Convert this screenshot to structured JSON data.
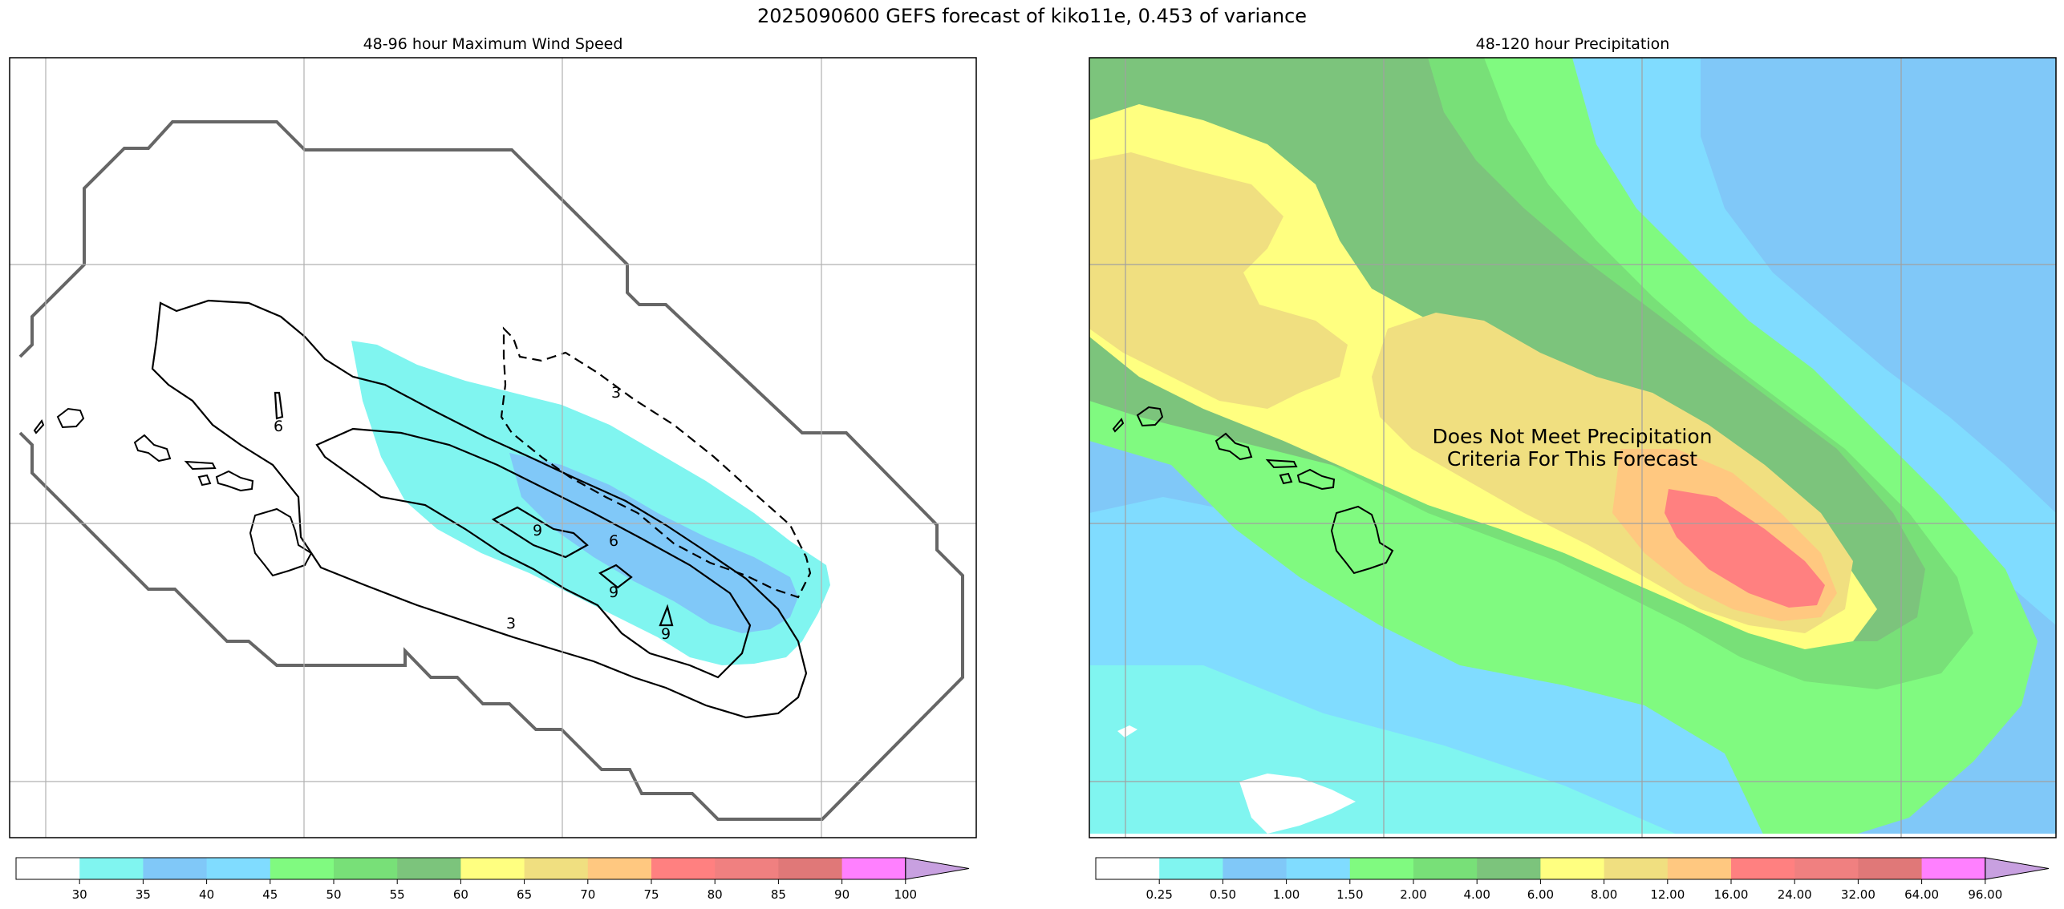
{
  "figure": {
    "title": "2025090600 GEFS forecast of kiko11e, 0.453 of variance"
  },
  "chart_data": [
    {
      "type": "heatmap",
      "title": "48-96 hour Maximum Wind Speed",
      "xlabel": "",
      "ylabel": "",
      "grid": true,
      "colorbar": {
        "levels": [
          30,
          35,
          40,
          45,
          50,
          55,
          60,
          65,
          70,
          75,
          80,
          85,
          90,
          100
        ],
        "tick_labels": [
          "30",
          "35",
          "40",
          "45",
          "50",
          "55",
          "60",
          "65",
          "70",
          "75",
          "80",
          "85",
          "90",
          "100"
        ],
        "colors": [
          "#ffffff",
          "#80f5f0",
          "#80c8f8",
          "#80dcff",
          "#80fa80",
          "#78e078",
          "#7cc47c",
          "#ffff80",
          "#f0df80",
          "#ffc880",
          "#ff8080",
          "#f08080",
          "#e07878",
          "#ff80ff",
          "#c8a0e0"
        ],
        "extend": "max"
      },
      "shaded_region_levels": [
        "35",
        "40"
      ],
      "contour_labels": [
        "3",
        "6",
        "9",
        "9",
        "9",
        "6",
        "3"
      ]
    },
    {
      "type": "heatmap",
      "title": "48-120 hour Precipitation",
      "xlabel": "",
      "ylabel": "",
      "grid": true,
      "annotation": [
        "Does Not Meet Precipitation",
        "Criteria For This Forecast"
      ],
      "colorbar": {
        "levels": [
          0.25,
          0.5,
          1.0,
          1.5,
          2.0,
          4.0,
          6.0,
          8.0,
          12.0,
          16.0,
          24.0,
          32.0,
          64.0,
          96.0
        ],
        "tick_labels": [
          "0.25",
          "0.50",
          "1.00",
          "1.50",
          "2.00",
          "4.00",
          "6.00",
          "8.00",
          "12.00",
          "16.00",
          "24.00",
          "32.00",
          "64.00",
          "96.00"
        ],
        "colors": [
          "#ffffff",
          "#80f5f0",
          "#80c8f8",
          "#80dcff",
          "#80fa80",
          "#78e078",
          "#7cc47c",
          "#ffff80",
          "#f0df80",
          "#ffc880",
          "#ff8080",
          "#f08080",
          "#e07878",
          "#ff80ff",
          "#c8a0e0"
        ],
        "extend": "max"
      }
    }
  ]
}
